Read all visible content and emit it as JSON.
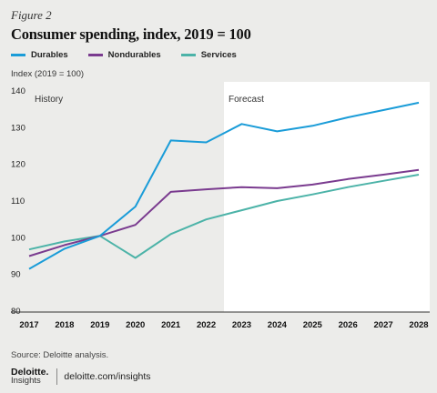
{
  "figure_label": "Figure 2",
  "source": "Source: Deloitte analysis.",
  "footer": {
    "logo_name": "Deloitte.",
    "logo_sub": "Insights",
    "link": "deloitte.com/insights"
  },
  "chart_data": {
    "type": "line",
    "title": "Consumer spending, index, 2019 = 100",
    "ylabel": "Index (2019 = 100)",
    "xlabel": "",
    "x": [
      2017,
      2018,
      2019,
      2020,
      2021,
      2022,
      2023,
      2024,
      2025,
      2026,
      2027,
      2028
    ],
    "x_tick_labels": [
      "2017",
      "2018",
      "2019",
      "2020",
      "2021",
      "2022",
      "2023",
      "2024",
      "2025",
      "2026",
      "2027",
      "2028"
    ],
    "ylim": [
      80,
      140
    ],
    "y_ticks": [
      80,
      90,
      100,
      110,
      120,
      130,
      140
    ],
    "grid": false,
    "legend_position": "top-left",
    "annotations": {
      "history": "History",
      "forecast": "Forecast",
      "forecast_start": 2022.5
    },
    "series": [
      {
        "name": "Durables",
        "color": "#1a9cd8",
        "values": [
          91.5,
          97.0,
          100.5,
          108.5,
          126.5,
          126.0,
          131.0,
          129.0,
          130.5,
          132.8,
          134.8,
          136.8
        ]
      },
      {
        "name": "Nondurables",
        "color": "#7a3b8f",
        "values": [
          95.0,
          98.0,
          100.5,
          103.5,
          112.5,
          113.2,
          113.8,
          113.5,
          114.5,
          116.0,
          117.2,
          118.5
        ]
      },
      {
        "name": "Services",
        "color": "#4cb3a8",
        "values": [
          96.8,
          99.0,
          100.5,
          94.5,
          101.0,
          105.0,
          107.5,
          110.0,
          111.8,
          113.8,
          115.5,
          117.2
        ]
      }
    ]
  }
}
